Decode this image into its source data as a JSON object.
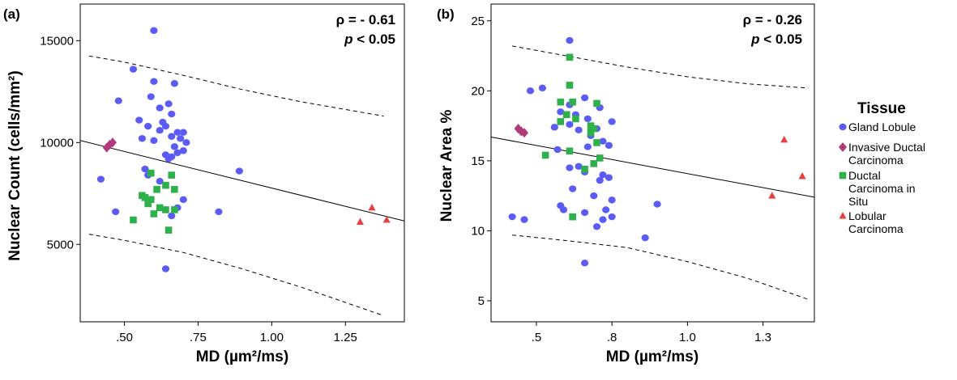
{
  "legend": {
    "title": "Tissue",
    "entries": [
      {
        "name": "Gland Lobule",
        "lines": [
          "Gland Lobule"
        ],
        "marker": "circle",
        "color": "#5b5bf5"
      },
      {
        "name": "Invasive Ductal Carcinoma",
        "lines": [
          "Invasive Ductal",
          "Carcinoma"
        ],
        "marker": "diamond",
        "color": "#b03a7a"
      },
      {
        "name": "Ductal Carcinoma in Situ",
        "lines": [
          "Ductal",
          "Carcinoma in",
          "Situ"
        ],
        "marker": "square",
        "color": "#2eb04a"
      },
      {
        "name": "Lobular Carcinoma",
        "lines": [
          "Lobular",
          "Carcinoma"
        ],
        "marker": "triangle",
        "color": "#e84040"
      }
    ]
  },
  "chart_data": [
    {
      "type": "scatter",
      "panel_label": "(a)",
      "xlabel": "MD (µm²/ms)",
      "ylabel": "Nuclear Count (cells/mm²)",
      "xlim": [
        0.35,
        1.45
      ],
      "ylim": [
        1200,
        16800
      ],
      "xticks": [
        0.5,
        0.75,
        1.0,
        1.25
      ],
      "xtick_labels": [
        ".50",
        ".75",
        "1.00",
        "1.25"
      ],
      "yticks": [
        5000,
        10000,
        15000
      ],
      "ytick_labels": [
        "5000",
        "10000",
        "15000"
      ],
      "stat_rho": "ρ = - 0.61",
      "stat_p_symbol": "p",
      "stat_p_rest": " < 0.05",
      "fit_line": {
        "x": [
          0.35,
          1.45
        ],
        "y": [
          10100,
          6150
        ]
      },
      "ci_upper": {
        "x": [
          0.38,
          0.5,
          0.7,
          0.9,
          1.1,
          1.38
        ],
        "y": [
          14250,
          13950,
          13300,
          12600,
          12000,
          11300
        ]
      },
      "ci_lower": {
        "x": [
          0.38,
          0.5,
          0.7,
          0.9,
          1.1,
          1.38
        ],
        "y": [
          5500,
          5200,
          4600,
          3800,
          2900,
          1500
        ]
      },
      "series": [
        {
          "name": "Gland Lobule",
          "marker": "circle",
          "color": "#5b5bf5",
          "points": [
            [
              0.6,
              15500
            ],
            [
              0.53,
              13600
            ],
            [
              0.6,
              13000
            ],
            [
              0.67,
              12900
            ],
            [
              0.48,
              12050
            ],
            [
              0.59,
              12250
            ],
            [
              0.62,
              11700
            ],
            [
              0.65,
              11900
            ],
            [
              0.66,
              11400
            ],
            [
              0.55,
              11100
            ],
            [
              0.63,
              11000
            ],
            [
              0.62,
              10600
            ],
            [
              0.64,
              10800
            ],
            [
              0.58,
              10800
            ],
            [
              0.68,
              10500
            ],
            [
              0.7,
              10500
            ],
            [
              0.66,
              10300
            ],
            [
              0.56,
              10200
            ],
            [
              0.6,
              10100
            ],
            [
              0.69,
              10200
            ],
            [
              0.71,
              10000
            ],
            [
              0.67,
              9800
            ],
            [
              0.7,
              9600
            ],
            [
              0.64,
              9400
            ],
            [
              0.66,
              9300
            ],
            [
              0.68,
              9500
            ],
            [
              0.65,
              9200
            ],
            [
              0.57,
              8700
            ],
            [
              0.58,
              8400
            ],
            [
              0.89,
              8600
            ],
            [
              0.42,
              8200
            ],
            [
              0.62,
              8100
            ],
            [
              0.7,
              7200
            ],
            [
              0.68,
              6800
            ],
            [
              0.82,
              6600
            ],
            [
              0.66,
              6400
            ],
            [
              0.47,
              6600
            ],
            [
              0.64,
              3800
            ]
          ]
        },
        {
          "name": "Invasive Ductal Carcinoma",
          "marker": "diamond",
          "color": "#b03a7a",
          "points": [
            [
              0.44,
              9750
            ],
            [
              0.45,
              9900
            ],
            [
              0.46,
              10000
            ]
          ]
        },
        {
          "name": "Ductal Carcinoma in Situ",
          "marker": "square",
          "color": "#2eb04a",
          "points": [
            [
              0.59,
              8500
            ],
            [
              0.66,
              8400
            ],
            [
              0.64,
              7900
            ],
            [
              0.67,
              7700
            ],
            [
              0.61,
              7700
            ],
            [
              0.56,
              7400
            ],
            [
              0.57,
              7300
            ],
            [
              0.59,
              7200
            ],
            [
              0.58,
              7000
            ],
            [
              0.62,
              6800
            ],
            [
              0.64,
              6700
            ],
            [
              0.67,
              6700
            ],
            [
              0.6,
              6500
            ],
            [
              0.53,
              6200
            ],
            [
              0.65,
              5700
            ]
          ]
        },
        {
          "name": "Lobular Carcinoma",
          "marker": "triangle",
          "color": "#e84040",
          "points": [
            [
              1.34,
              6800
            ],
            [
              1.3,
              6100
            ],
            [
              1.39,
              6200
            ]
          ]
        }
      ]
    },
    {
      "type": "scatter",
      "panel_label": "(b)",
      "xlabel": "MD (µm²/ms)",
      "ylabel": "Nuclear Area %",
      "xlim": [
        0.35,
        1.42
      ],
      "ylim": [
        3.5,
        26.2
      ],
      "xticks": [
        0.5,
        0.75,
        1.0,
        1.25
      ],
      "xtick_labels": [
        ".5",
        ".8",
        "1.0",
        "1.3"
      ],
      "yticks": [
        5,
        10,
        15,
        20,
        25
      ],
      "ytick_labels": [
        "5",
        "10",
        "15",
        "20",
        "25"
      ],
      "stat_rho": "ρ = - 0.26",
      "stat_p_symbol": "p",
      "stat_p_rest": " < 0.05",
      "fit_line": {
        "x": [
          0.35,
          1.42
        ],
        "y": [
          16.7,
          12.4
        ]
      },
      "ci_upper": {
        "x": [
          0.42,
          0.6,
          0.8,
          1.0,
          1.2,
          1.4
        ],
        "y": [
          23.2,
          22.5,
          21.7,
          21.0,
          20.5,
          20.2
        ]
      },
      "ci_lower": {
        "x": [
          0.42,
          0.6,
          0.8,
          1.0,
          1.2,
          1.4
        ],
        "y": [
          9.7,
          9.3,
          8.8,
          7.8,
          6.6,
          5.1
        ]
      },
      "series": [
        {
          "name": "Gland Lobule",
          "marker": "circle",
          "color": "#5b5bf5",
          "points": [
            [
              0.61,
              23.6
            ],
            [
              0.52,
              20.2
            ],
            [
              0.48,
              20.0
            ],
            [
              0.61,
              19.0
            ],
            [
              0.66,
              19.5
            ],
            [
              0.71,
              18.8
            ],
            [
              0.58,
              18.5
            ],
            [
              0.63,
              18.3
            ],
            [
              0.67,
              18.0
            ],
            [
              0.75,
              17.8
            ],
            [
              0.61,
              17.6
            ],
            [
              0.56,
              17.4
            ],
            [
              0.64,
              17.2
            ],
            [
              0.7,
              17.3
            ],
            [
              0.68,
              16.8
            ],
            [
              0.72,
              16.4
            ],
            [
              0.74,
              16.1
            ],
            [
              0.67,
              16.0
            ],
            [
              0.57,
              15.8
            ],
            [
              0.61,
              14.5
            ],
            [
              0.64,
              14.6
            ],
            [
              0.66,
              14.2
            ],
            [
              0.72,
              14.0
            ],
            [
              0.74,
              13.8
            ],
            [
              0.71,
              13.6
            ],
            [
              0.62,
              13.0
            ],
            [
              0.69,
              12.5
            ],
            [
              0.75,
              12.2
            ],
            [
              0.58,
              11.8
            ],
            [
              0.66,
              11.3
            ],
            [
              0.73,
              11.5
            ],
            [
              0.59,
              11.5
            ],
            [
              0.72,
              10.8
            ],
            [
              0.7,
              10.3
            ],
            [
              0.75,
              11.0
            ],
            [
              0.42,
              11.0
            ],
            [
              0.46,
              10.8
            ],
            [
              0.9,
              11.9
            ],
            [
              0.86,
              9.5
            ],
            [
              0.66,
              7.7
            ]
          ]
        },
        {
          "name": "Invasive Ductal Carcinoma",
          "marker": "diamond",
          "color": "#b03a7a",
          "points": [
            [
              0.44,
              17.3
            ],
            [
              0.45,
              17.1
            ],
            [
              0.46,
              17.0
            ]
          ]
        },
        {
          "name": "Ductal Carcinoma in Situ",
          "marker": "square",
          "color": "#2eb04a",
          "points": [
            [
              0.61,
              22.4
            ],
            [
              0.61,
              20.4
            ],
            [
              0.58,
              19.2
            ],
            [
              0.62,
              19.2
            ],
            [
              0.7,
              19.1
            ],
            [
              0.6,
              18.3
            ],
            [
              0.63,
              18.0
            ],
            [
              0.58,
              17.8
            ],
            [
              0.68,
              17.5
            ],
            [
              0.69,
              17.3
            ],
            [
              0.68,
              17.0
            ],
            [
              0.7,
              16.3
            ],
            [
              0.61,
              15.7
            ],
            [
              0.53,
              15.4
            ],
            [
              0.71,
              15.2
            ],
            [
              0.69,
              14.8
            ],
            [
              0.66,
              14.4
            ],
            [
              0.62,
              11.0
            ]
          ]
        },
        {
          "name": "Lobular Carcinoma",
          "marker": "triangle",
          "color": "#e84040",
          "points": [
            [
              1.32,
              16.5
            ],
            [
              1.38,
              13.9
            ],
            [
              1.28,
              12.5
            ]
          ]
        }
      ]
    }
  ]
}
